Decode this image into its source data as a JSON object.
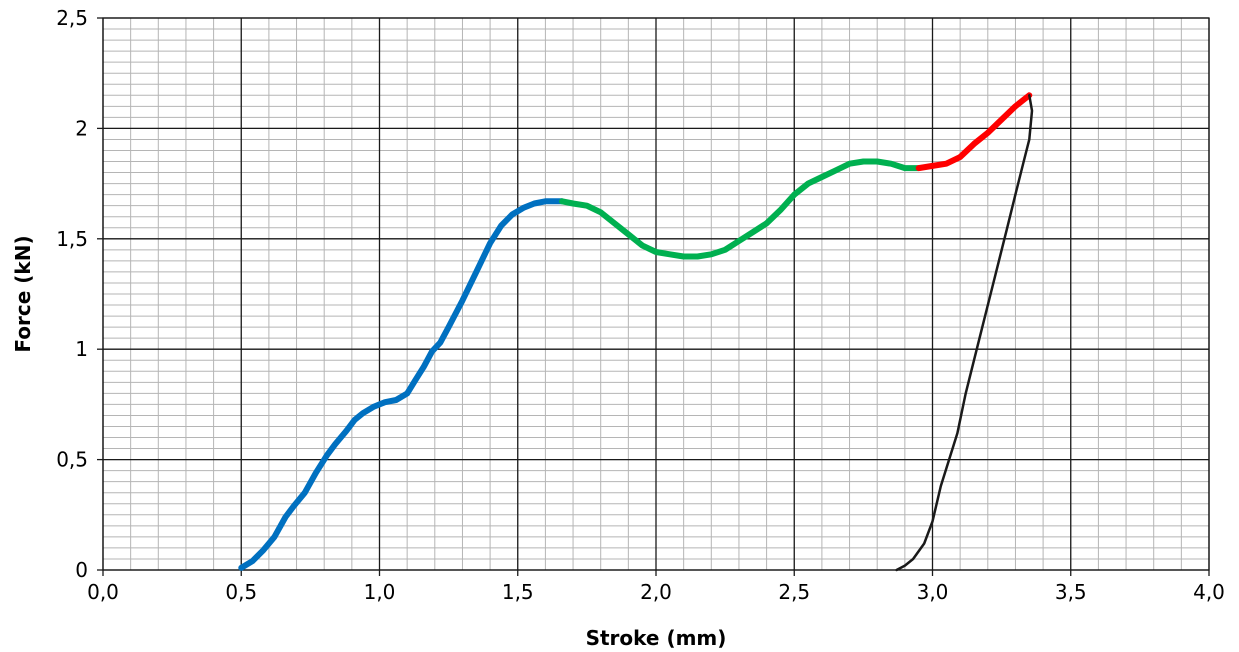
{
  "chart_data": {
    "type": "line",
    "title": "",
    "xlabel": "Stroke (mm)",
    "ylabel": "Force (kN)",
    "xlim": [
      0.0,
      4.0
    ],
    "ylim": [
      0,
      2.5
    ],
    "x_ticks": [
      "0,0",
      "0,5",
      "1,0",
      "1,5",
      "2,0",
      "2,5",
      "3,0",
      "3,5",
      "4,0"
    ],
    "y_ticks": [
      "0",
      "0,5",
      "1",
      "1,5",
      "2",
      "2,5"
    ],
    "grid": {
      "major": true,
      "minor": true,
      "minor_x_step": 0.1,
      "minor_y_step": 0.05
    },
    "legend": "none",
    "series": [
      {
        "color": "#0070C0",
        "x": [
          0.5,
          0.54,
          0.58,
          0.62,
          0.66,
          0.69,
          0.73,
          0.77,
          0.81,
          0.84,
          0.88,
          0.91,
          0.94,
          0.98,
          1.02,
          1.06,
          1.1,
          1.13,
          1.16,
          1.19,
          1.22,
          1.25,
          1.3,
          1.35,
          1.4,
          1.44,
          1.48,
          1.52,
          1.56,
          1.6,
          1.63,
          1.66
        ],
        "y": [
          0.01,
          0.04,
          0.09,
          0.15,
          0.24,
          0.29,
          0.35,
          0.44,
          0.52,
          0.57,
          0.63,
          0.68,
          0.71,
          0.74,
          0.76,
          0.77,
          0.8,
          0.86,
          0.92,
          0.99,
          1.03,
          1.1,
          1.22,
          1.35,
          1.48,
          1.56,
          1.61,
          1.64,
          1.66,
          1.67,
          1.67,
          1.67
        ]
      },
      {
        "color": "#00B050",
        "x": [
          1.66,
          1.7,
          1.75,
          1.8,
          1.85,
          1.9,
          1.95,
          2.0,
          2.05,
          2.1,
          2.15,
          2.2,
          2.25,
          2.3,
          2.35,
          2.4,
          2.45,
          2.5,
          2.55,
          2.6,
          2.65,
          2.7,
          2.75,
          2.8,
          2.85,
          2.9,
          2.95
        ],
        "y": [
          1.67,
          1.66,
          1.65,
          1.62,
          1.57,
          1.52,
          1.47,
          1.44,
          1.43,
          1.42,
          1.42,
          1.43,
          1.45,
          1.49,
          1.53,
          1.57,
          1.63,
          1.7,
          1.75,
          1.78,
          1.81,
          1.84,
          1.85,
          1.85,
          1.84,
          1.82,
          1.82
        ]
      },
      {
        "color": "#FF0000",
        "x": [
          2.95,
          3.0,
          3.05,
          3.1,
          3.15,
          3.2,
          3.25,
          3.3,
          3.33,
          3.35
        ],
        "y": [
          1.82,
          1.83,
          1.84,
          1.87,
          1.93,
          1.98,
          2.04,
          2.1,
          2.13,
          2.15
        ]
      },
      {
        "color": "#1A1A1A",
        "x": [
          3.35,
          3.36,
          3.35,
          3.33,
          3.3,
          3.27,
          3.24,
          3.21,
          3.18,
          3.15,
          3.12,
          3.09,
          3.06,
          3.03,
          3.0,
          2.97,
          2.93,
          2.9,
          2.87
        ],
        "y": [
          2.15,
          2.08,
          1.95,
          1.85,
          1.7,
          1.55,
          1.4,
          1.25,
          1.1,
          0.95,
          0.8,
          0.62,
          0.5,
          0.38,
          0.22,
          0.12,
          0.05,
          0.02,
          0.0
        ]
      }
    ]
  }
}
